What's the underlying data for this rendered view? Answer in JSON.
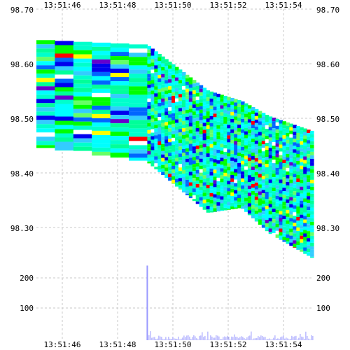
{
  "chart_data": [
    {
      "type": "heatmap",
      "title": "",
      "xlabel": "",
      "ylabel": "",
      "x_ticks": [
        "13:51:46",
        "13:51:48",
        "13:51:50",
        "13:51:52",
        "13:51:54"
      ],
      "y_ticks": [
        "98.70",
        "98.60",
        "98.50",
        "98.40",
        "98.30"
      ],
      "ylim": [
        98.2,
        98.7
      ],
      "grid": true,
      "colors": [
        "#00ffcc",
        "#00ff99",
        "#00ffff",
        "#33ccff",
        "#0066ff",
        "#0000ee",
        "#00ff00",
        "#66ff66",
        "#ffff00",
        "#ff0000",
        "#6600cc",
        "#ffffff"
      ],
      "price_boundary": {
        "x": [
          0,
          0.4,
          0.62,
          0.74,
          0.84,
          1.0
        ],
        "upper": [
          98.64,
          98.63,
          98.54,
          98.52,
          98.49,
          98.46
        ],
        "lower": [
          98.43,
          98.4,
          98.3,
          98.31,
          98.26,
          98.21
        ]
      }
    },
    {
      "type": "bar",
      "title": "",
      "xlabel": "",
      "ylabel": "",
      "y_ticks": [
        "200",
        "100"
      ],
      "ylim": [
        0,
        230
      ],
      "spike_value": 225,
      "typical_range": [
        2,
        15
      ]
    }
  ]
}
